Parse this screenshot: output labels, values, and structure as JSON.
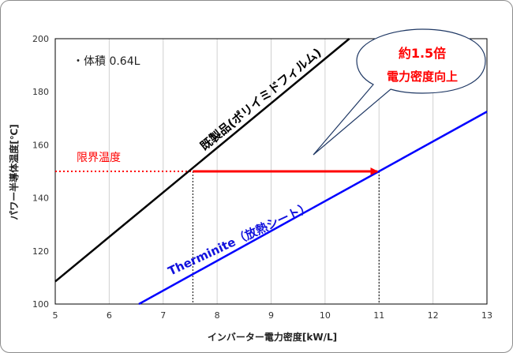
{
  "chart_data": {
    "type": "line",
    "xlabel": "インバーター電力密度[kW/L]",
    "ylabel": "パワー半導体温度[℃]",
    "xlim": [
      5,
      13
    ],
    "ylim": [
      100,
      200
    ],
    "xticks": [
      5,
      6,
      7,
      8,
      9,
      10,
      11,
      12,
      13
    ],
    "yticks": [
      100,
      120,
      140,
      160,
      180,
      200
    ],
    "grid": "vertical",
    "series": [
      {
        "name": "既製品(ポリイミドフィルム)",
        "color": "#000000",
        "x": [
          5,
          10.45
        ],
        "y": [
          108.5,
          200
        ]
      },
      {
        "name": "Therminite（放熱シート）",
        "color": "#0000ff",
        "x": [
          6.55,
          13
        ],
        "y": [
          100,
          172.5
        ]
      }
    ],
    "threshold": {
      "label": "限界温度",
      "y": 150,
      "color": "#ff0000"
    },
    "markers": [
      {
        "x": 7.55,
        "y": 150
      },
      {
        "x": 11,
        "y": 150
      }
    ],
    "arrow": {
      "from_x": 7.55,
      "to_x": 11,
      "y": 150,
      "color": "#ff0000"
    },
    "annotations": {
      "volume": "・体積 0.64L",
      "callout_line1": "約1.5倍",
      "callout_line2": "電力密度向上"
    }
  }
}
